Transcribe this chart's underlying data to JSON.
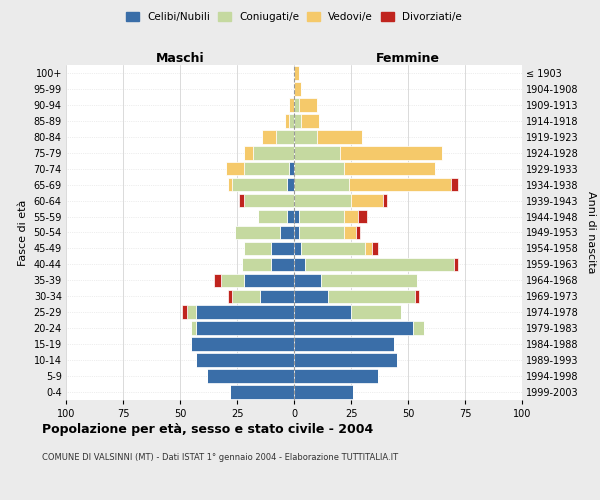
{
  "age_groups": [
    "0-4",
    "5-9",
    "10-14",
    "15-19",
    "20-24",
    "25-29",
    "30-34",
    "35-39",
    "40-44",
    "45-49",
    "50-54",
    "55-59",
    "60-64",
    "65-69",
    "70-74",
    "75-79",
    "80-84",
    "85-89",
    "90-94",
    "95-99",
    "100+"
  ],
  "birth_years": [
    "1999-2003",
    "1994-1998",
    "1989-1993",
    "1984-1988",
    "1979-1983",
    "1974-1978",
    "1969-1973",
    "1964-1968",
    "1959-1963",
    "1954-1958",
    "1949-1953",
    "1944-1948",
    "1939-1943",
    "1934-1938",
    "1929-1933",
    "1924-1928",
    "1919-1923",
    "1914-1918",
    "1909-1913",
    "1904-1908",
    "≤ 1903"
  ],
  "colors": {
    "celibe": "#3a6ea8",
    "coniugato": "#c5d9a0",
    "vedovo": "#f5c96a",
    "divorziato": "#c0241e"
  },
  "male": {
    "celibe": [
      28,
      38,
      43,
      45,
      43,
      43,
      15,
      22,
      10,
      10,
      6,
      3,
      0,
      3,
      2,
      0,
      0,
      0,
      0,
      0,
      0
    ],
    "coniugato": [
      0,
      0,
      0,
      0,
      2,
      4,
      12,
      10,
      13,
      12,
      20,
      13,
      22,
      24,
      20,
      18,
      8,
      2,
      0,
      0,
      0
    ],
    "vedovo": [
      0,
      0,
      0,
      0,
      0,
      0,
      0,
      0,
      0,
      0,
      0,
      0,
      0,
      2,
      8,
      4,
      6,
      2,
      2,
      0,
      0
    ],
    "divorziato": [
      0,
      0,
      0,
      0,
      0,
      2,
      2,
      3,
      0,
      0,
      0,
      0,
      2,
      0,
      0,
      0,
      0,
      0,
      0,
      0,
      0
    ]
  },
  "female": {
    "nubile": [
      26,
      37,
      45,
      44,
      52,
      25,
      15,
      12,
      5,
      3,
      2,
      2,
      0,
      0,
      0,
      0,
      0,
      0,
      0,
      0,
      0
    ],
    "coniugata": [
      0,
      0,
      0,
      0,
      5,
      22,
      38,
      42,
      65,
      28,
      20,
      20,
      25,
      24,
      22,
      20,
      10,
      3,
      2,
      0,
      0
    ],
    "vedova": [
      0,
      0,
      0,
      0,
      0,
      0,
      0,
      0,
      0,
      3,
      5,
      6,
      14,
      45,
      40,
      45,
      20,
      8,
      8,
      3,
      2
    ],
    "divorziata": [
      0,
      0,
      0,
      0,
      0,
      0,
      2,
      0,
      2,
      3,
      2,
      4,
      2,
      3,
      0,
      0,
      0,
      0,
      0,
      0,
      0
    ]
  },
  "xlim": 100,
  "title": "Popolazione per età, sesso e stato civile - 2004",
  "subtitle": "COMUNE DI VALSINNI (MT) - Dati ISTAT 1° gennaio 2004 - Elaborazione TUTTITALIA.IT",
  "ylabel_left": "Fasce di età",
  "ylabel_right": "Anni di nascita",
  "xlabel_left": "Maschi",
  "xlabel_right": "Femmine",
  "legend_labels": [
    "Celibi/Nubili",
    "Coniugati/e",
    "Vedovi/e",
    "Divorziati/e"
  ],
  "background_color": "#ebebeb",
  "plot_bg": "#ffffff"
}
